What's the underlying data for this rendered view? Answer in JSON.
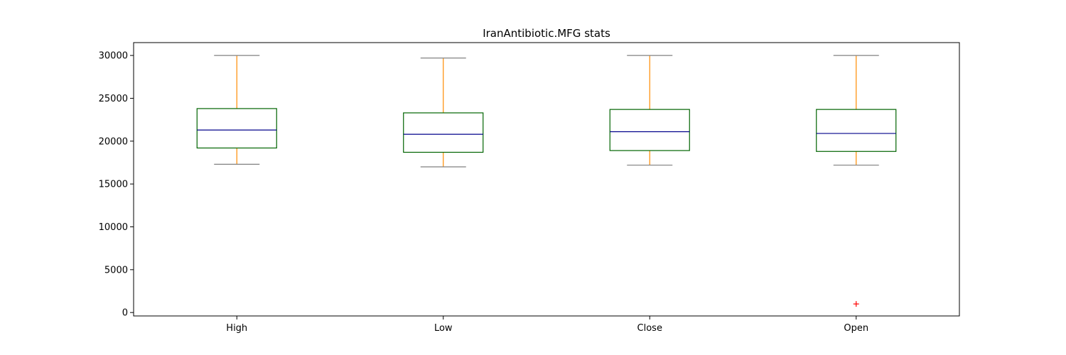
{
  "chart_data": {
    "type": "box",
    "title": "IranAntibiotic.MFG stats",
    "xlabel": "",
    "ylabel": "",
    "ylim": [
      -400,
      31500
    ],
    "yticks": [
      0,
      5000,
      10000,
      15000,
      20000,
      25000,
      30000
    ],
    "ytick_labels": [
      "0",
      "5000",
      "10000",
      "15000",
      "20000",
      "25000",
      "30000"
    ],
    "grid": false,
    "categories": [
      "High",
      "Low",
      "Close",
      "Open"
    ],
    "boxes": [
      {
        "name": "High",
        "whisker_low": 17300,
        "q1": 19200,
        "median": 21300,
        "q3": 23800,
        "whisker_high": 30000,
        "outliers": []
      },
      {
        "name": "Low",
        "whisker_low": 17000,
        "q1": 18700,
        "median": 20800,
        "q3": 23300,
        "whisker_high": 29700,
        "outliers": []
      },
      {
        "name": "Close",
        "whisker_low": 17200,
        "q1": 18900,
        "median": 21100,
        "q3": 23700,
        "whisker_high": 30000,
        "outliers": []
      },
      {
        "name": "Open",
        "whisker_low": 17200,
        "q1": 18800,
        "median": 20900,
        "q3": 23700,
        "whisker_high": 30000,
        "outliers": [
          1000
        ]
      }
    ],
    "colors": {
      "box": "#006400",
      "median": "#00008b",
      "whisker": "#ff8c00",
      "cap": "#808080",
      "outlier": "#ff0000"
    }
  }
}
